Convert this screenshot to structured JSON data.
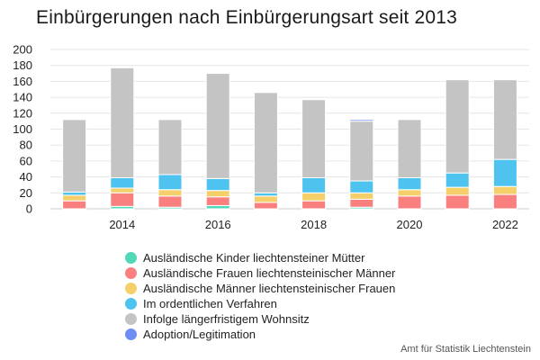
{
  "chart_data": {
    "type": "bar",
    "stacked": true,
    "title": "Einbürgerungen nach Einbürgerungsart seit 2013",
    "x": [
      2013,
      2014,
      2015,
      2016,
      2017,
      2018,
      2019,
      2020,
      2021,
      2022
    ],
    "x_tick_labels": [
      "2014",
      "2016",
      "2018",
      "2020",
      "2022"
    ],
    "x_tick_values": [
      2014,
      2016,
      2018,
      2020,
      2022
    ],
    "y_tick_labels": [
      "0",
      "20",
      "40",
      "60",
      "80",
      "100",
      "120",
      "140",
      "160",
      "180",
      "200"
    ],
    "ylim": [
      0,
      200
    ],
    "grid": true,
    "legend_position": "bottom",
    "series": [
      {
        "name": "Ausländische Kinder liechtensteiner Mütter",
        "color": "#50d8b8",
        "values": [
          0,
          3,
          2,
          4,
          0,
          0,
          2,
          0,
          0,
          0
        ]
      },
      {
        "name": "Ausländische Frauen liechtensteinischer Männer",
        "color": "#fa8080",
        "values": [
          10,
          17,
          14,
          11,
          8,
          10,
          10,
          16,
          17,
          18
        ]
      },
      {
        "name": "Ausländische Männer liechtensteinischer Frauen",
        "color": "#f5d06a",
        "values": [
          7,
          6,
          8,
          8,
          8,
          10,
          8,
          8,
          10,
          10
        ]
      },
      {
        "name": "Im ordentlichen Verfahren",
        "color": "#4ec3f0",
        "values": [
          4,
          13,
          19,
          15,
          4,
          19,
          15,
          15,
          18,
          34
        ]
      },
      {
        "name": "Infolge längerfristigem Wohnsitz",
        "color": "#c4c4c4",
        "values": [
          91,
          138,
          69,
          132,
          126,
          98,
          75,
          73,
          117,
          100
        ]
      },
      {
        "name": "Adoption/Legitimation",
        "color": "#6f8ef5",
        "values": [
          0,
          0,
          0,
          0,
          0,
          0,
          2,
          0,
          0,
          0
        ]
      }
    ]
  },
  "credits": "Amt für Statistik Liechtenstein"
}
